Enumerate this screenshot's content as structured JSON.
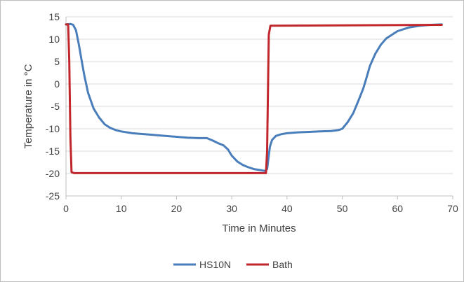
{
  "chart_data": {
    "type": "line",
    "title": "",
    "xlabel": "Time in Minutes",
    "ylabel": "Temperature in °C",
    "xlim": [
      0,
      70
    ],
    "ylim": [
      -25,
      15
    ],
    "x_ticks": [
      0,
      10,
      20,
      30,
      40,
      50,
      60,
      70
    ],
    "y_ticks": [
      15,
      10,
      5,
      0,
      -5,
      -10,
      -15,
      -20,
      -25
    ],
    "grid": true,
    "legend_position": "bottom",
    "series": [
      {
        "name": "HS10N",
        "color": "#4a7ebb",
        "x": [
          0,
          0.8,
          1.3,
          1.8,
          2.3,
          2.8,
          3.3,
          4,
          5,
          6,
          7,
          8,
          9,
          10,
          12,
          15,
          18,
          20,
          22,
          24,
          25.5,
          26.5,
          27.5,
          28.5,
          29.3,
          30,
          31,
          32,
          33,
          34,
          35,
          36,
          36.4,
          36.6,
          36.9,
          37.3,
          38,
          39,
          40,
          42,
          44,
          46,
          48,
          49.3,
          50,
          51,
          52,
          53,
          53.8,
          54.3,
          55,
          56,
          57,
          58,
          60,
          62,
          64,
          66,
          68
        ],
        "y": [
          13.3,
          13.4,
          13.2,
          12,
          9,
          5.5,
          2,
          -2,
          -5.5,
          -7.5,
          -9,
          -9.8,
          -10.3,
          -10.6,
          -11,
          -11.3,
          -11.6,
          -11.8,
          -12,
          -12.1,
          -12.1,
          -12.6,
          -13.2,
          -13.7,
          -14.6,
          -16,
          -17.3,
          -18.1,
          -18.6,
          -19,
          -19.2,
          -19.4,
          -19,
          -17,
          -14,
          -12.5,
          -11.6,
          -11.2,
          -11,
          -10.8,
          -10.7,
          -10.6,
          -10.5,
          -10.3,
          -10,
          -8.5,
          -6.5,
          -3.5,
          -1,
          1,
          4,
          6.8,
          8.8,
          10.2,
          11.8,
          12.6,
          13,
          13.2,
          13.3
        ]
      },
      {
        "name": "Bath",
        "color": "#c0272d",
        "x": [
          0,
          0.4,
          0.6,
          0.8,
          1,
          1.5,
          36.2,
          36.4,
          36.7,
          37,
          68
        ],
        "y": [
          13.3,
          13.3,
          5,
          -12,
          -19.7,
          -19.9,
          -19.9,
          -15,
          11,
          13,
          13.2
        ]
      }
    ]
  }
}
